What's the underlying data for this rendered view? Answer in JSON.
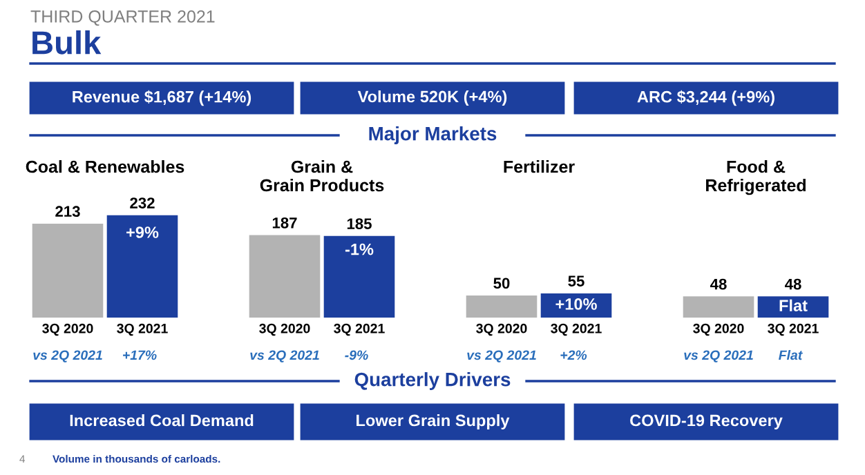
{
  "chart_data": [
    {
      "type": "other",
      "subtitle": "THIRD QUARTER 2021",
      "title": "Bulk",
      "annotations": [
        "Revenue $1,687 (+14%)",
        "Volume 520K (+4%)",
        "ARC $3,244 (+9%)",
        "Major Markets",
        "Quarterly Drivers",
        "Increased Coal Demand",
        "Lower Grain Supply",
        "COVID-19 Recovery",
        "4",
        "Volume in thousands of carloads."
      ]
    },
    {
      "type": "bar",
      "title": "Coal & Renewables",
      "categories": [
        "3Q 2020",
        "3Q 2021"
      ],
      "values": [
        213,
        232
      ],
      "colors": [
        "#b3b3b3",
        "#1c3f9e"
      ],
      "data_labels": true,
      "annotations": [
        "+9%",
        "vs 2Q 2021",
        "+17%"
      ]
    },
    {
      "type": "bar",
      "title": "Grain &\nGrain Products",
      "categories": [
        "3Q 2020",
        "3Q 2021"
      ],
      "values": [
        187,
        185
      ],
      "colors": [
        "#b3b3b3",
        "#1c3f9e"
      ],
      "data_labels": true,
      "annotations": [
        "-1%",
        "vs 2Q 2021",
        "-9%"
      ]
    },
    {
      "type": "bar",
      "title": "Fertilizer",
      "categories": [
        "3Q 2020",
        "3Q 2021"
      ],
      "values": [
        50,
        55
      ],
      "colors": [
        "#b3b3b3",
        "#1c3f9e"
      ],
      "data_labels": true,
      "annotations": [
        "+10%",
        "vs 2Q 2021",
        "+2%"
      ]
    },
    {
      "type": "bar",
      "title": "Food &\nRefrigerated",
      "categories": [
        "3Q 2020",
        "3Q 2021"
      ],
      "values": [
        48,
        48
      ],
      "colors": [
        "#b3b3b3",
        "#1c3f9e"
      ],
      "data_labels": true,
      "annotations": [
        "Flat",
        "vs 2Q 2021",
        "Flat"
      ]
    }
  ]
}
